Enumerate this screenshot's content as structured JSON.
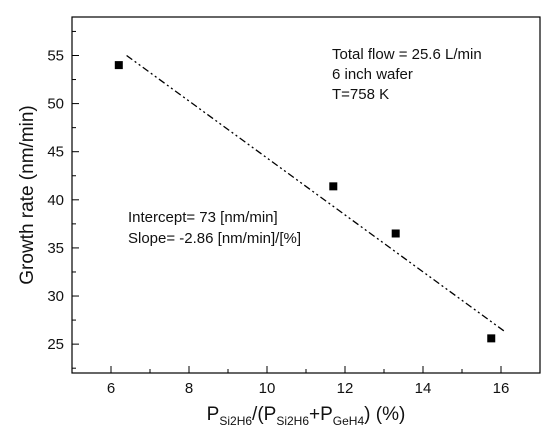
{
  "chart_data": {
    "type": "scatter",
    "xlabel_parts": {
      "p1": "P",
      "s1": "Si2H6",
      "mid": "/(P",
      "s2": "Si2H6",
      "plus": "+P",
      "s3": "GeH4",
      "end": ") (%)"
    },
    "ylabel": "Growth rate (nm/min)",
    "xlim": [
      5,
      17
    ],
    "ylim": [
      22,
      59
    ],
    "x_ticks": [
      6,
      8,
      10,
      12,
      14,
      16
    ],
    "x_ticks_labels": [
      "6",
      "8",
      "10",
      "12",
      "14",
      "16"
    ],
    "y_ticks": [
      25,
      30,
      35,
      40,
      45,
      50,
      55
    ],
    "y_ticks_labels": [
      "25",
      "30",
      "35",
      "40",
      "45",
      "50",
      "55"
    ],
    "points": {
      "x": [
        6.2,
        11.7,
        13.3,
        15.75
      ],
      "y": [
        54,
        41.4,
        36.5,
        25.6
      ]
    },
    "fit_line": {
      "x": [
        6.4,
        16.1
      ],
      "y": [
        55.0,
        26.3
      ]
    },
    "annotations": {
      "conditions": [
        "Total flow = 25.6 L/min",
        "6 inch wafer",
        "T=758 K"
      ],
      "fit": [
        "Intercept= 73 [nm/min]",
        "Slope= -2.86 [nm/min]/[%]"
      ]
    },
    "grid": false,
    "legend": "none"
  }
}
